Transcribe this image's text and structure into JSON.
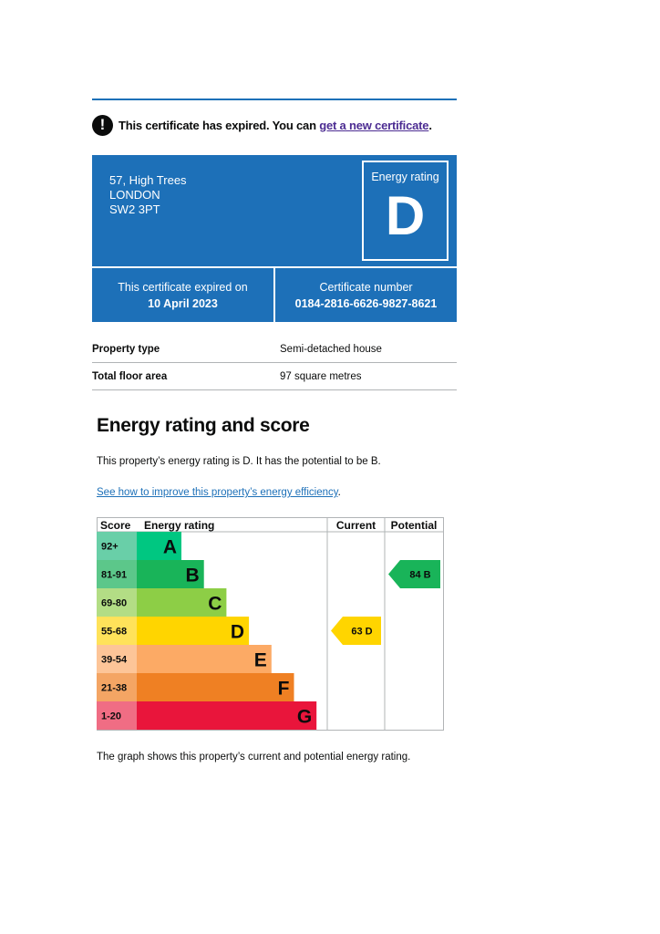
{
  "warning": {
    "icon": "exclamation-icon",
    "text": "This certificate has expired. You can ",
    "link": "get a new certificate",
    "end": "."
  },
  "address": [
    "57, High Trees",
    "LONDON",
    "SW2 3PT"
  ],
  "energy_rating": {
    "label": "Energy rating",
    "value": "D"
  },
  "expiry": {
    "label": "This certificate expired on",
    "value": "10 April 2023"
  },
  "certificate": {
    "label": "Certificate number",
    "value": "0184-2816-6626-9827-8621"
  },
  "property": [
    {
      "key": "Property type",
      "value": "Semi-detached house"
    },
    {
      "key": "Total floor area",
      "value": "97 square metres"
    }
  ],
  "section": {
    "title": "Energy rating and score",
    "summary": "This property’s energy rating is D. It has the potential to be B.",
    "improve_link": "See how to improve this property’s energy efficiency",
    "improve_end": ".",
    "note": "The graph shows this property’s current and potential energy rating."
  },
  "colors": {
    "brand_blue": "#1d70b8",
    "link_purple": "#4c2c92"
  },
  "chart_data": {
    "type": "bar",
    "headers": {
      "score": "Score",
      "rating": "Energy rating",
      "current": "Current",
      "potential": "Potential"
    },
    "bands": [
      {
        "score": "92+",
        "letter": "A",
        "color": "#00c781",
        "score_color": "#69cfa8"
      },
      {
        "score": "81-91",
        "letter": "B",
        "color": "#19b459",
        "score_color": "#5cc78a"
      },
      {
        "score": "69-80",
        "letter": "C",
        "color": "#8dce46",
        "score_color": "#b3dd85"
      },
      {
        "score": "55-68",
        "letter": "D",
        "color": "#ffd500",
        "score_color": "#ffe25a"
      },
      {
        "score": "39-54",
        "letter": "E",
        "color": "#fcaa65",
        "score_color": "#fdc598"
      },
      {
        "score": "21-38",
        "letter": "F",
        "color": "#ef8023",
        "score_color": "#f4a564"
      },
      {
        "score": "1-20",
        "letter": "G",
        "color": "#e9153b",
        "score_color": "#f06d84"
      }
    ],
    "current": {
      "value": 63,
      "letter": "D",
      "label": "63  D"
    },
    "potential": {
      "value": 84,
      "letter": "B",
      "label": "84  B"
    }
  }
}
